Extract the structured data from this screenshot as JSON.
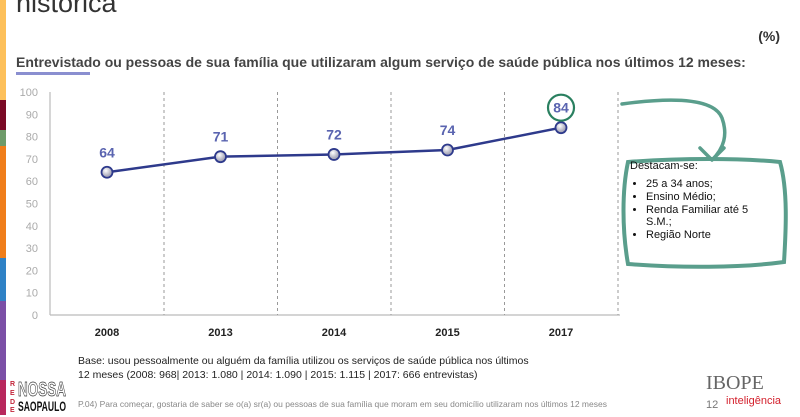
{
  "header": {
    "title": "histórica",
    "unit": "(%)",
    "subtitle": "Entrevistado ou pessoas de sua família que utilizaram algum serviço de saúde pública nos últimos 12 meses:"
  },
  "chart_data": {
    "type": "line",
    "categories": [
      "2008",
      "2013",
      "2014",
      "2015",
      "2017"
    ],
    "values": [
      64,
      71,
      72,
      74,
      84
    ],
    "data_labels": [
      "64",
      "71",
      "72",
      "74",
      "84"
    ],
    "yticks": [
      "0",
      "10",
      "20",
      "30",
      "40",
      "50",
      "60",
      "70",
      "80",
      "90",
      "100"
    ],
    "ylim": [
      0,
      100
    ],
    "line_color": "#2e3a8c",
    "label_color": "#5a64b0",
    "highlight": {
      "category": "2017",
      "color": "#2a8060"
    }
  },
  "callout": {
    "heading": "Destacam-se:",
    "items": [
      "25 a 34 anos;",
      "Ensino Médio;",
      "Renda Familiar até 5 S.M.;",
      "Região Norte"
    ],
    "border_color": "#5a9e8c"
  },
  "footer": {
    "base_line1": "Base: usou pessoalmente ou alguém da família utilizou os serviços de saúde pública nos últimos",
    "base_line2": "12 meses  (2008: 968| 2013: 1.080 | 2014: 1.090  | 2015: 1.115 | 2017: 666 entrevistas)",
    "question": "P.04) Para começar, gostaria de saber se o(a) sr(a) ou pessoas de sua família que moram em seu domicílio utilizaram nos últimos 12 meses",
    "page": "12",
    "brand": "IBOPE",
    "brand_sub": "inteligência",
    "logo_text": "REDE NOSSA SÃO PAULO"
  },
  "side_colors": [
    "#fdc05a",
    "#7a0a26",
    "#6e9b6a",
    "#f07e1a",
    "#2f82c6",
    "#7b4fa6",
    "#b8285c"
  ]
}
